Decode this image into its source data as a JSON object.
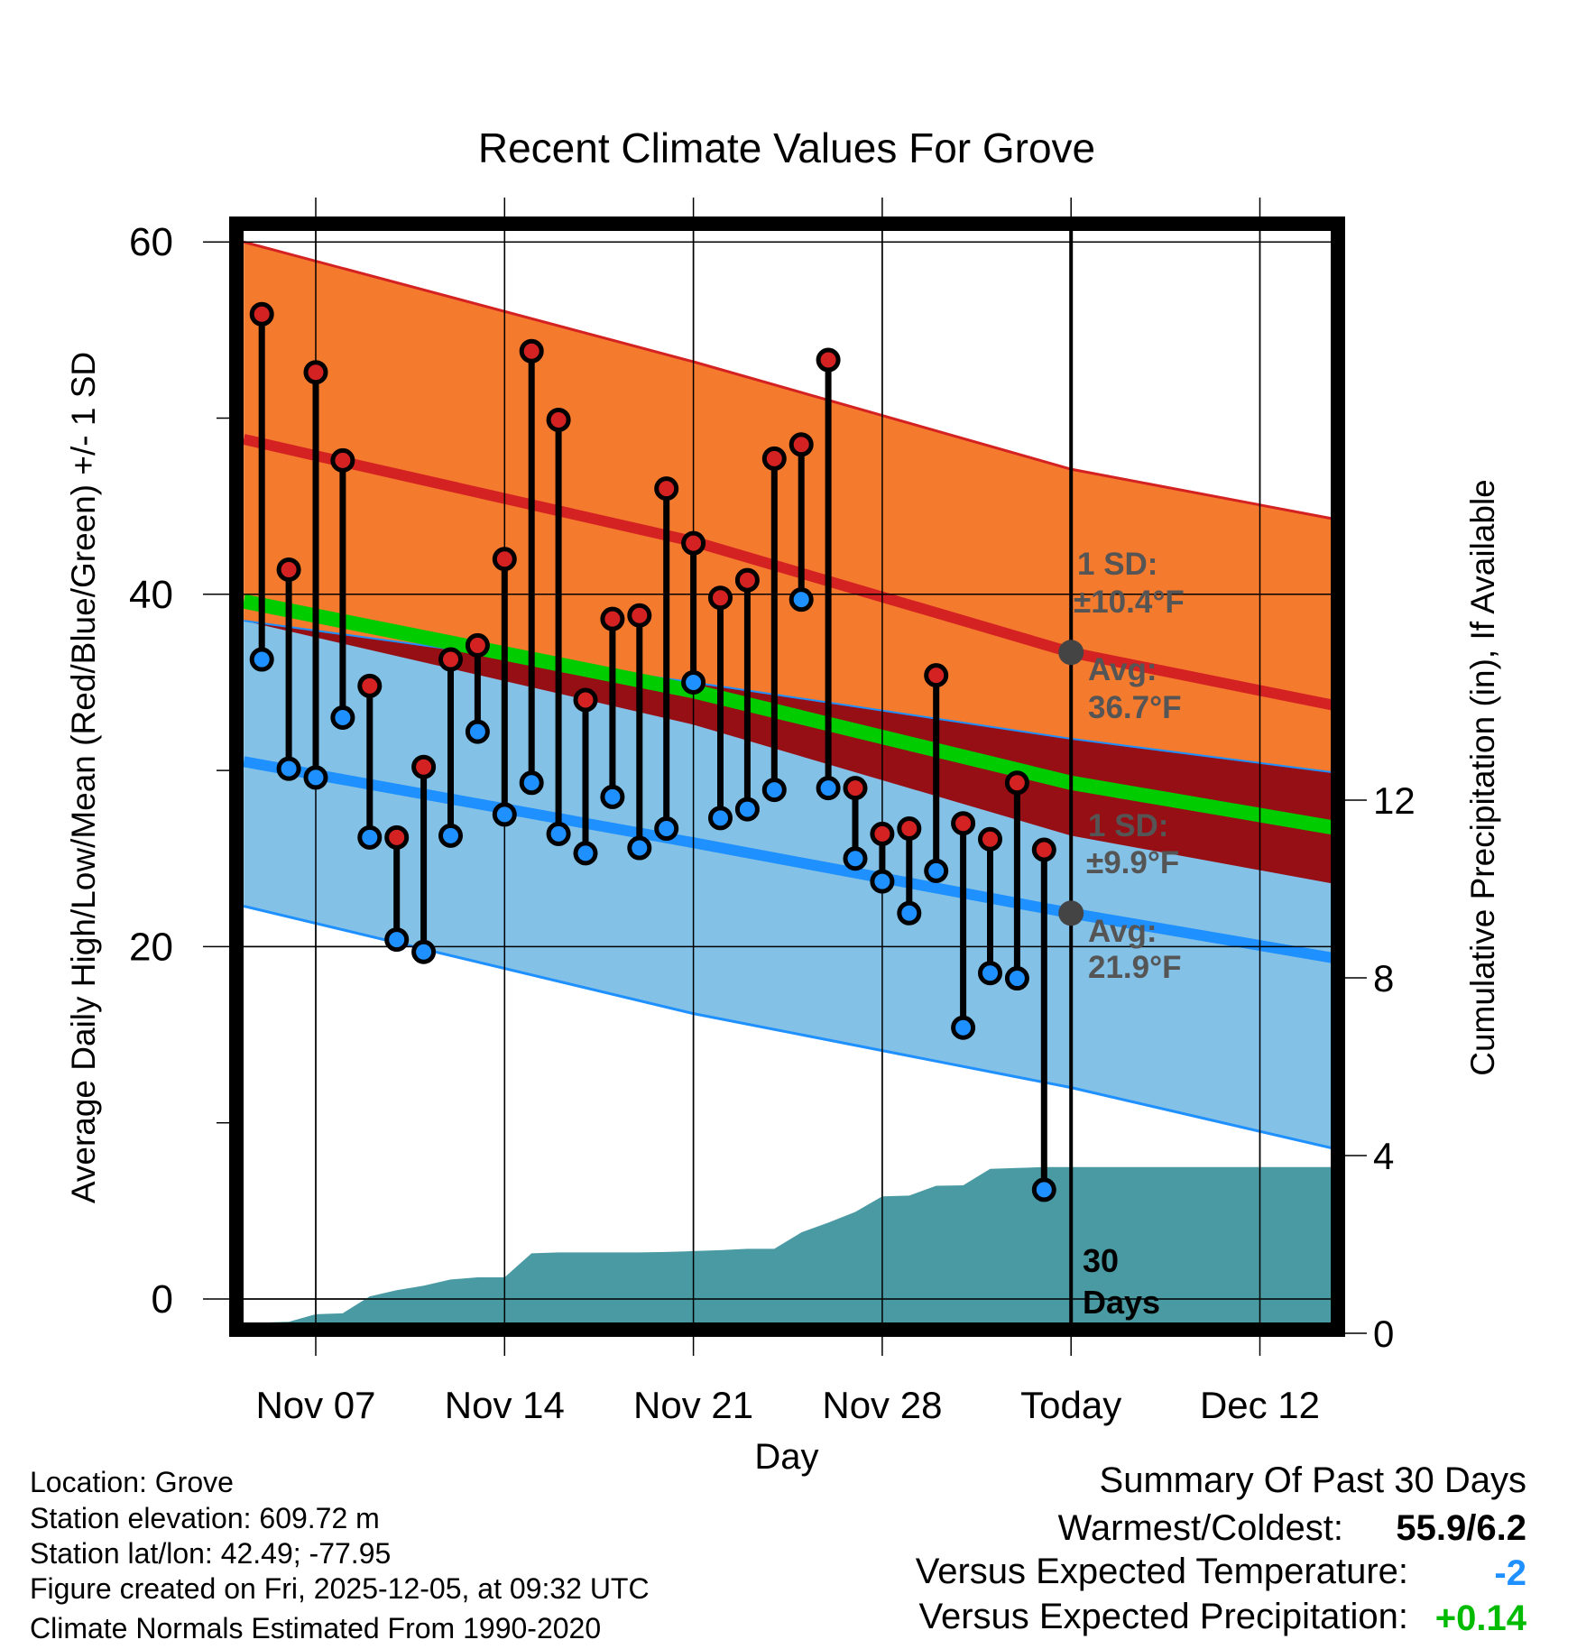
{
  "chart_data": {
    "type": "line",
    "title": "Recent Climate Values For Grove",
    "xlabel": "Day",
    "ylabel": "Average Daily High/Low/Mean (Red/Blue/Green) +/- 1 SD",
    "y2label": "Cumulative Precipitation (in), If Available",
    "ylim": [
      -1.3,
      60
    ],
    "y2lim": [
      0,
      16
    ],
    "yticks": [
      "60",
      "40",
      "20",
      "0"
    ],
    "yticks_values": [
      60,
      40,
      20,
      0
    ],
    "y2ticks": [
      "12",
      "8",
      "4",
      "0"
    ],
    "y2ticks_values": [
      12,
      8,
      4,
      0
    ],
    "xticks": [
      "Nov 07",
      "Nov 14",
      "Nov 21",
      "Nov 28",
      "Today",
      "Dec 12"
    ],
    "xticks_day": [
      7,
      14,
      21,
      28,
      35,
      42
    ],
    "xlim_day": [
      4.33,
      45.7
    ],
    "grid": true,
    "days": [
      5,
      6,
      7,
      8,
      9,
      10,
      11,
      12,
      13,
      14,
      15,
      16,
      17,
      18,
      19,
      20,
      21,
      22,
      23,
      24,
      25,
      26,
      27,
      28,
      29,
      30,
      31,
      32,
      33,
      34
    ],
    "highs": [
      55.9,
      41.4,
      52.6,
      47.6,
      34.8,
      26.2,
      30.2,
      36.3,
      37.1,
      42.0,
      53.8,
      49.9,
      34.0,
      38.6,
      38.8,
      46.0,
      42.9,
      39.8,
      40.8,
      47.7,
      48.5,
      53.3,
      29.0,
      26.4,
      26.7,
      35.4,
      27.0,
      26.1,
      29.3,
      25.5
    ],
    "lows": [
      36.3,
      30.1,
      29.6,
      33.0,
      26.2,
      20.4,
      19.7,
      26.3,
      32.2,
      27.5,
      29.3,
      26.4,
      25.3,
      28.5,
      25.6,
      26.7,
      35.0,
      27.3,
      27.8,
      28.9,
      39.7,
      29.0,
      25.0,
      23.7,
      21.9,
      24.3,
      15.4,
      18.5,
      18.2,
      6.2
    ],
    "precip_cumulative": [
      0.24,
      0.26,
      0.43,
      0.45,
      0.83,
      0.97,
      1.07,
      1.21,
      1.26,
      1.26,
      1.8,
      1.82,
      1.82,
      1.82,
      1.82,
      1.83,
      1.85,
      1.87,
      1.9,
      1.9,
      2.27,
      2.49,
      2.73,
      3.08,
      3.1,
      3.32,
      3.33,
      3.7,
      3.72,
      3.74
    ],
    "normals": {
      "days": [
        4.33,
        21,
        35,
        45.7
      ],
      "high_plus_sd": [
        60.0,
        53.2,
        47.1,
        44.0
      ],
      "high_avg": [
        48.8,
        43.0,
        36.7,
        33.4
      ],
      "high_minus_sd": [
        38.5,
        32.6,
        26.3,
        23.3
      ],
      "mean": [
        39.6,
        34.5,
        29.3,
        26.5
      ],
      "low_plus_sd": [
        38.5,
        35.0,
        31.8,
        29.7
      ],
      "low_avg": [
        30.5,
        25.9,
        21.9,
        19.1
      ],
      "low_minus_sd": [
        22.3,
        16.2,
        12.0,
        8.2
      ]
    },
    "annotations": {
      "high_sd_label": "1 SD:",
      "high_sd_value": "±10.4°F",
      "high_avg_label": "Avg:",
      "high_avg_value": "36.7°F",
      "low_sd_label": "1 SD:",
      "low_sd_value": "±9.9°F",
      "low_avg_label": "Avg:",
      "low_avg_value": "21.9°F",
      "period_number": "30",
      "period_unit": "Days"
    },
    "colors": {
      "high_band": "#f47a2e",
      "low_band": "#84c1e6",
      "overlap": "#960f15",
      "high_line": "#d42222",
      "low_line": "#1e90ff",
      "mean_line": "#00cc00",
      "precip": "#4a9aa3"
    }
  },
  "footer": {
    "location": "Location: Grove",
    "elevation": "Station elevation: 609.72 m",
    "latlon": "Station lat/lon: 42.49; -77.95",
    "created": "Figure created on Fri, 2025-12-05, at 09:32 UTC",
    "normals": "Climate Normals Estimated From 1990-2020"
  },
  "summary": {
    "title": "Summary Of Past 30 Days",
    "warmest_label": "Warmest/Coldest:",
    "warmest_value": "55.9/6.2",
    "temp_label": "Versus Expected Temperature:",
    "temp_value": "-2",
    "temp_color": "#1e90ff",
    "precip_label": "Versus Expected Precipitation:",
    "precip_value": "+0.14",
    "precip_color": "#00bb00"
  }
}
